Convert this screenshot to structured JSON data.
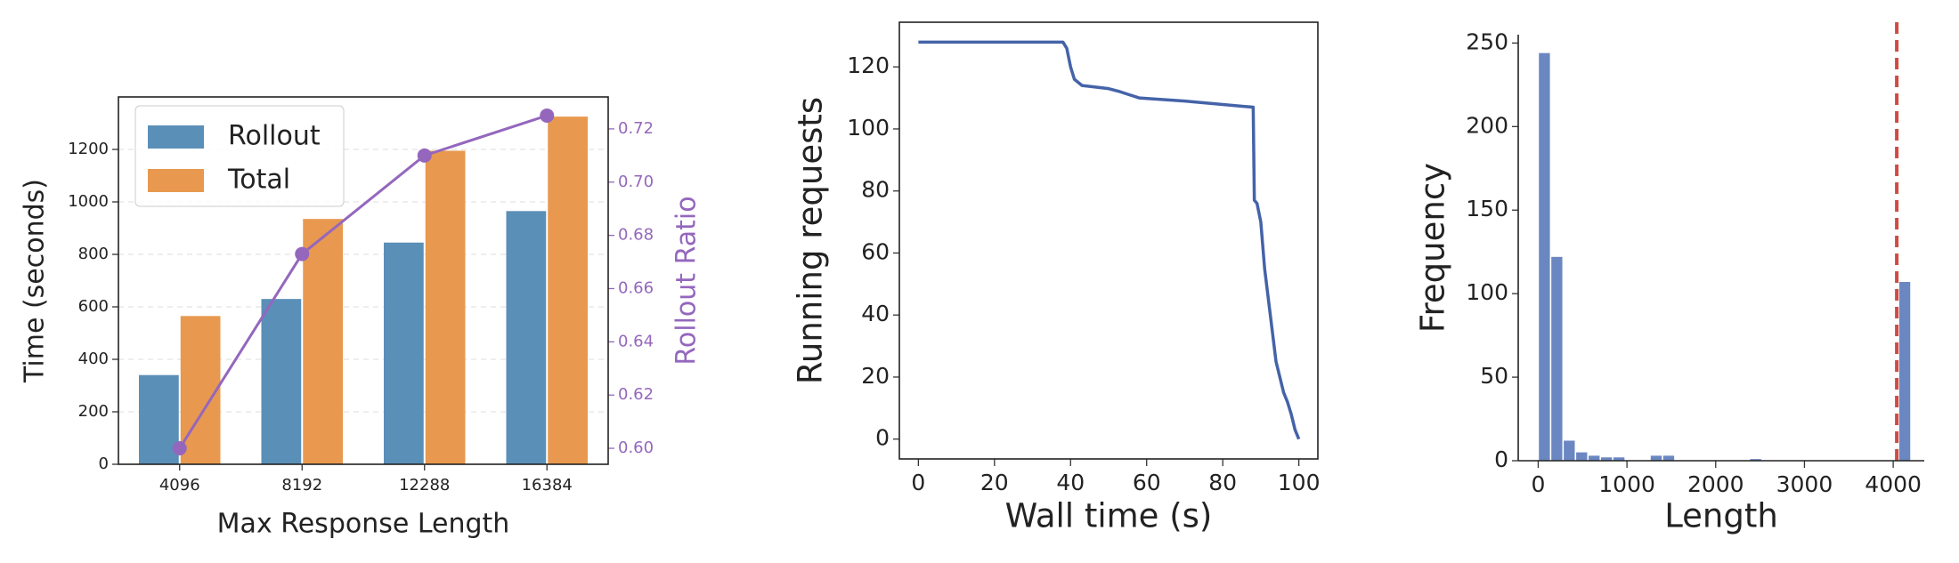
{
  "chart_data": [
    {
      "type": "bar",
      "xlabel": "Max Response Length",
      "ylabel": "Time (seconds)",
      "y2label": "Rollout Ratio",
      "categories": [
        "4096",
        "8192",
        "12288",
        "16384"
      ],
      "series": [
        {
          "name": "Rollout",
          "color": "#5a8fb8",
          "values": [
            340,
            630,
            845,
            965
          ]
        },
        {
          "name": "Total",
          "color": "#e8994f",
          "values": [
            565,
            935,
            1195,
            1325
          ]
        },
        {
          "type": "line",
          "axis": "y2",
          "color": "#9467bd",
          "values": [
            0.6,
            0.673,
            0.71,
            0.725
          ]
        }
      ],
      "ylim": [
        0,
        1400
      ],
      "yticks": [
        0,
        200,
        400,
        600,
        800,
        1000,
        1200
      ],
      "y2lim": [
        0.594,
        0.732
      ],
      "y2ticks": [
        {
          "value": 0.6,
          "label": "0.60"
        },
        {
          "value": 0.62,
          "label": "0.62"
        },
        {
          "value": 0.64,
          "label": "0.64"
        },
        {
          "value": 0.66,
          "label": "0.66"
        },
        {
          "value": 0.68,
          "label": "0.68"
        },
        {
          "value": 0.7,
          "label": "0.70"
        },
        {
          "value": 0.72,
          "label": "0.72"
        }
      ],
      "grid": true,
      "legend": "upper left"
    },
    {
      "type": "line",
      "xlabel": "Wall time (s)",
      "ylabel": "Running requests",
      "color": "#4463a8",
      "x": [
        0,
        38,
        39,
        40,
        41,
        43,
        50,
        53,
        58,
        70,
        88,
        88.3,
        89,
        90,
        91,
        92,
        93,
        94,
        95,
        96,
        97,
        98,
        99,
        100
      ],
      "values": [
        128,
        128,
        126,
        120,
        116,
        114,
        113,
        112,
        110,
        109,
        107,
        77,
        76,
        70,
        55,
        45,
        35,
        25,
        20,
        15,
        12,
        8,
        3,
        0
      ],
      "xlim": [
        -5,
        105
      ],
      "xticks": [
        0,
        20,
        40,
        60,
        80,
        100
      ],
      "ylim": [
        -6.4,
        134.4
      ],
      "yticks": [
        0,
        20,
        40,
        60,
        80,
        100,
        120
      ],
      "grid": false
    },
    {
      "type": "histogram",
      "xlabel": "Length",
      "ylabel": "Frequency",
      "color": "#6a87c2",
      "bins": [
        0,
        140,
        280,
        420,
        560,
        700,
        840,
        980,
        1120,
        1260,
        1400,
        1540,
        1680,
        1820,
        1960,
        2100,
        2240,
        2380,
        2520,
        2660,
        2800,
        2940,
        3080,
        3220,
        3360,
        3500,
        3640,
        3780,
        3920,
        4060,
        4200
      ],
      "values": [
        244,
        122,
        12,
        5,
        3,
        2,
        2,
        0,
        0,
        3,
        3,
        0,
        0,
        0,
        0,
        0,
        0,
        1,
        0,
        0,
        0,
        0,
        0,
        0,
        0,
        0,
        0,
        0,
        0,
        107
      ],
      "vline": 4040,
      "vline_color": "#d14b42",
      "xlim": [
        -225,
        4350
      ],
      "xticks": [
        0,
        1000,
        2000,
        3000,
        4000
      ],
      "ylim": [
        0,
        255
      ],
      "yticks": [
        0,
        50,
        100,
        150,
        200,
        250
      ],
      "grid": false
    }
  ]
}
